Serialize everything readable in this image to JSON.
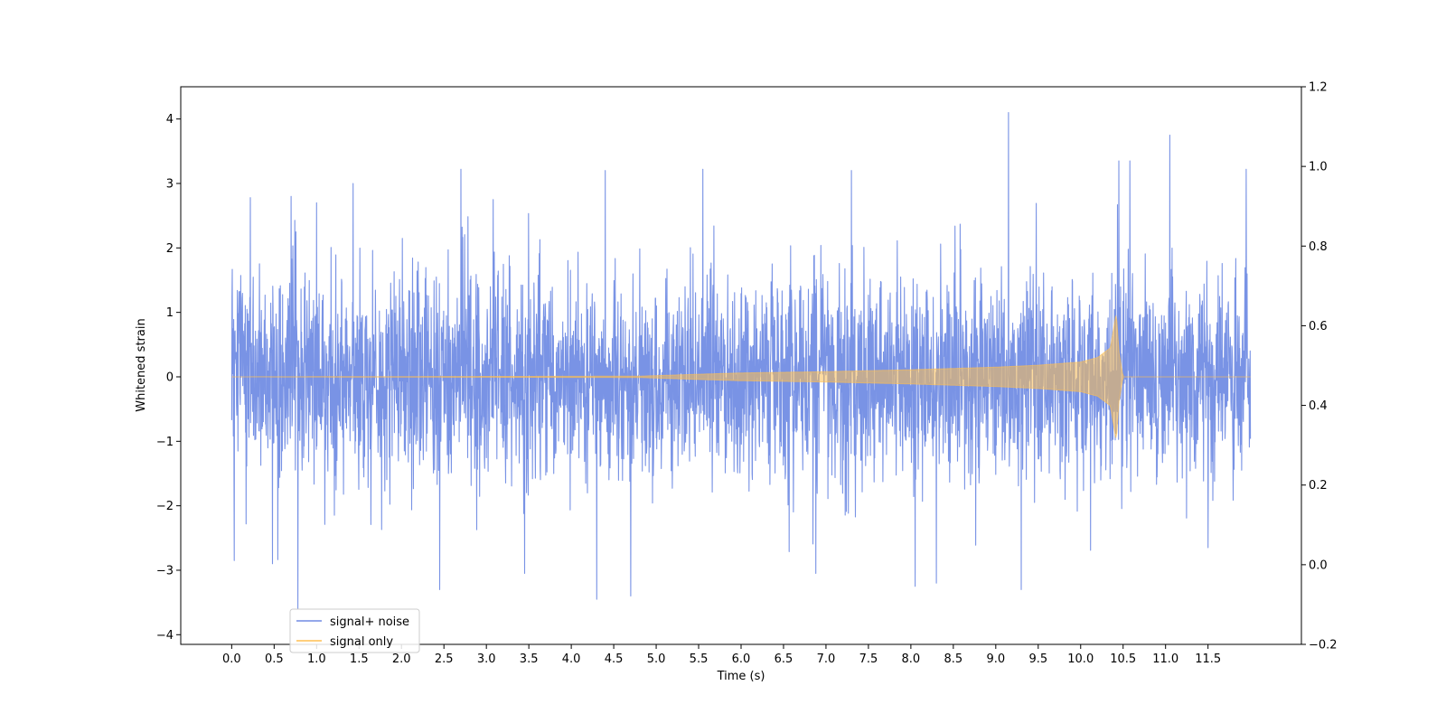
{
  "chart_data": {
    "type": "line",
    "title": "",
    "xlabel": "Time (s)",
    "ylabel": "Whitened strain",
    "xlim": [
      -0.6,
      12.6
    ],
    "ylim": [
      -4.15,
      4.5
    ],
    "y2lim": [
      -0.2,
      1.2
    ],
    "x_ticks": [
      0.0,
      0.5,
      1.0,
      1.5,
      2.0,
      2.5,
      3.0,
      3.5,
      4.0,
      4.5,
      5.0,
      5.5,
      6.0,
      6.5,
      7.0,
      7.5,
      8.0,
      8.5,
      9.0,
      9.5,
      10.0,
      10.5,
      11.0,
      11.5
    ],
    "x_tick_labels": [
      "0.0",
      "0.5",
      "1.0",
      "1.5",
      "2.0",
      "2.5",
      "3.0",
      "3.5",
      "4.0",
      "4.5",
      "5.0",
      "5.5",
      "6.0",
      "6.5",
      "7.0",
      "7.5",
      "8.0",
      "8.5",
      "9.0",
      "9.5",
      "10.0",
      "10.5",
      "11.0",
      "11.5"
    ],
    "y_ticks": [
      -4,
      -3,
      -2,
      -1,
      0,
      1,
      2,
      3,
      4
    ],
    "y_tick_labels": [
      "−4",
      "−3",
      "−2",
      "−1",
      "0",
      "1",
      "2",
      "3",
      "4"
    ],
    "y2_ticks": [
      -0.2,
      0.0,
      0.2,
      0.4,
      0.6,
      0.8,
      1.0,
      1.2
    ],
    "y2_tick_labels": [
      "−0.2",
      "0.0",
      "0.2",
      "0.4",
      "0.6",
      "0.8",
      "1.0",
      "1.2"
    ],
    "grid": false,
    "legend_position": "lower-left",
    "series": [
      {
        "name": "signal+ noise",
        "color": "#4c6fdc",
        "x_range": [
          0.0,
          12.0
        ],
        "typical_envelope": [
          -1.8,
          1.8
        ],
        "max": 4.1,
        "min": -3.6,
        "peaks": [
          {
            "x": 0.03,
            "y": 1.55
          },
          {
            "x": 0.03,
            "y": -2.85
          },
          {
            "x": 0.22,
            "y": 2.78
          },
          {
            "x": 0.48,
            "y": -2.9
          },
          {
            "x": 0.7,
            "y": 2.8
          },
          {
            "x": 0.78,
            "y": -3.6
          },
          {
            "x": 1.0,
            "y": 2.7
          },
          {
            "x": 1.43,
            "y": 3.0
          },
          {
            "x": 2.45,
            "y": -3.3
          },
          {
            "x": 2.7,
            "y": 3.22
          },
          {
            "x": 3.08,
            "y": 2.75
          },
          {
            "x": 3.45,
            "y": -3.05
          },
          {
            "x": 4.3,
            "y": -3.45
          },
          {
            "x": 4.4,
            "y": 3.2
          },
          {
            "x": 4.7,
            "y": -3.4
          },
          {
            "x": 5.55,
            "y": 3.22
          },
          {
            "x": 6.88,
            "y": -3.05
          },
          {
            "x": 7.3,
            "y": 3.2
          },
          {
            "x": 8.05,
            "y": -3.25
          },
          {
            "x": 8.3,
            "y": -3.2
          },
          {
            "x": 9.15,
            "y": 4.1
          },
          {
            "x": 9.3,
            "y": -3.3
          },
          {
            "x": 10.45,
            "y": 3.35
          },
          {
            "x": 10.58,
            "y": 3.35
          },
          {
            "x": 11.05,
            "y": 3.75
          },
          {
            "x": 11.5,
            "y": -2.65
          },
          {
            "x": 11.95,
            "y": 3.22
          }
        ]
      },
      {
        "name": "signal only",
        "color": "#ffbf50",
        "x_range": [
          0.0,
          12.0
        ],
        "envelope": [
          {
            "x": 0.0,
            "y": 0.0
          },
          {
            "x": 4.8,
            "y": 0.01
          },
          {
            "x": 5.5,
            "y": 0.04
          },
          {
            "x": 6.0,
            "y": 0.06
          },
          {
            "x": 7.0,
            "y": 0.08
          },
          {
            "x": 8.0,
            "y": 0.11
          },
          {
            "x": 9.0,
            "y": 0.15
          },
          {
            "x": 9.5,
            "y": 0.18
          },
          {
            "x": 10.0,
            "y": 0.23
          },
          {
            "x": 10.2,
            "y": 0.3
          },
          {
            "x": 10.35,
            "y": 0.45
          },
          {
            "x": 10.42,
            "y": 1.0
          },
          {
            "x": 10.45,
            "y": 0.4
          },
          {
            "x": 10.5,
            "y": 0.0
          },
          {
            "x": 12.0,
            "y": 0.0
          }
        ]
      }
    ]
  }
}
